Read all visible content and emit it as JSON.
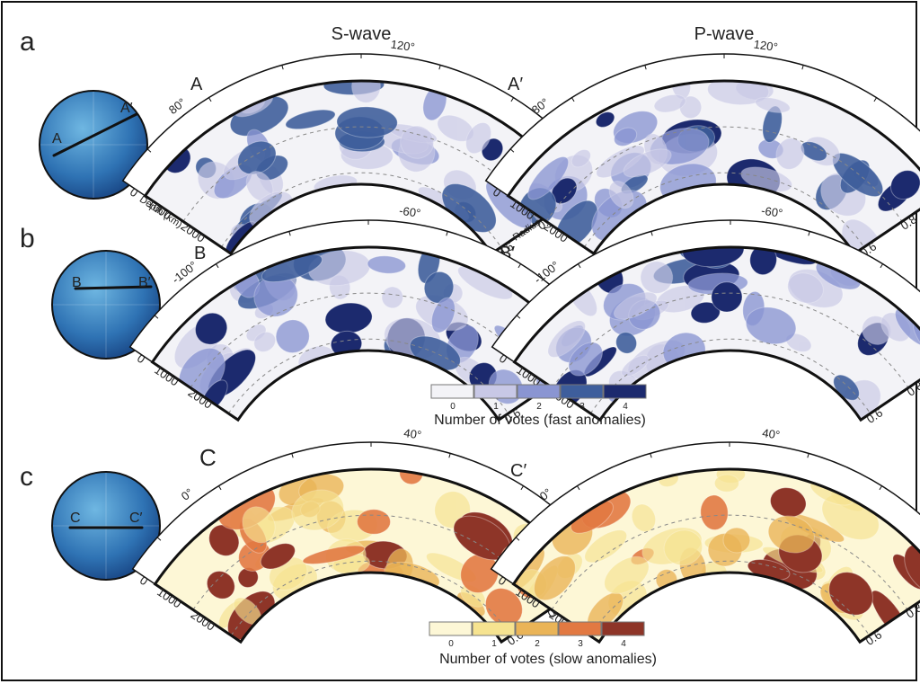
{
  "column_titles": [
    "S-wave",
    "P-wave"
  ],
  "colors": {
    "fast": [
      "#f3f3f7",
      "#c8c8e6",
      "#8a95d2",
      "#3e5e9c",
      "#1c2a6e"
    ],
    "slow": [
      "#fdf7d6",
      "#f6e390",
      "#eab457",
      "#e27942",
      "#8e3528"
    ]
  },
  "rows": [
    {
      "letter": "a",
      "line_start": "A",
      "line_end": "A′",
      "lon_labels": [
        "80°",
        "120°"
      ],
      "depth_ticks": [
        "0",
        "1000",
        "2000"
      ],
      "depth_label": "Depth (km)",
      "radius_ticks": [
        "1",
        "0.8",
        "0.6"
      ],
      "radius_label": "Radius",
      "globe_markers": [
        "A",
        "A′"
      ],
      "palette": "fast",
      "globe_region": "asia"
    },
    {
      "letter": "b",
      "line_start": "B",
      "line_end": "B′",
      "lon_labels": [
        "-100°",
        "-60°"
      ],
      "depth_ticks": [
        "0",
        "1000",
        "2000"
      ],
      "radius_ticks": [
        "1",
        "0.8",
        "0.6"
      ],
      "globe_markers": [
        "B",
        "B′"
      ],
      "palette": "fast",
      "globe_region": "americas"
    },
    {
      "letter": "c",
      "line_start": "C",
      "line_end": "C′",
      "lon_labels": [
        "0°",
        "40°"
      ],
      "depth_ticks": [
        "0",
        "1000",
        "2000"
      ],
      "radius_ticks": [
        "1",
        "0.8",
        "0.6"
      ],
      "globe_markers": [
        "C",
        "C′"
      ],
      "palette": "slow",
      "globe_region": "africa"
    }
  ],
  "legend_fast": {
    "title": "Number of votes (fast anomalies)",
    "values": [
      "0",
      "1",
      "2",
      "3",
      "4"
    ]
  },
  "legend_slow": {
    "title": "Number of votes (slow anomalies)",
    "values": [
      "0",
      "1",
      "2",
      "3",
      "4"
    ]
  }
}
